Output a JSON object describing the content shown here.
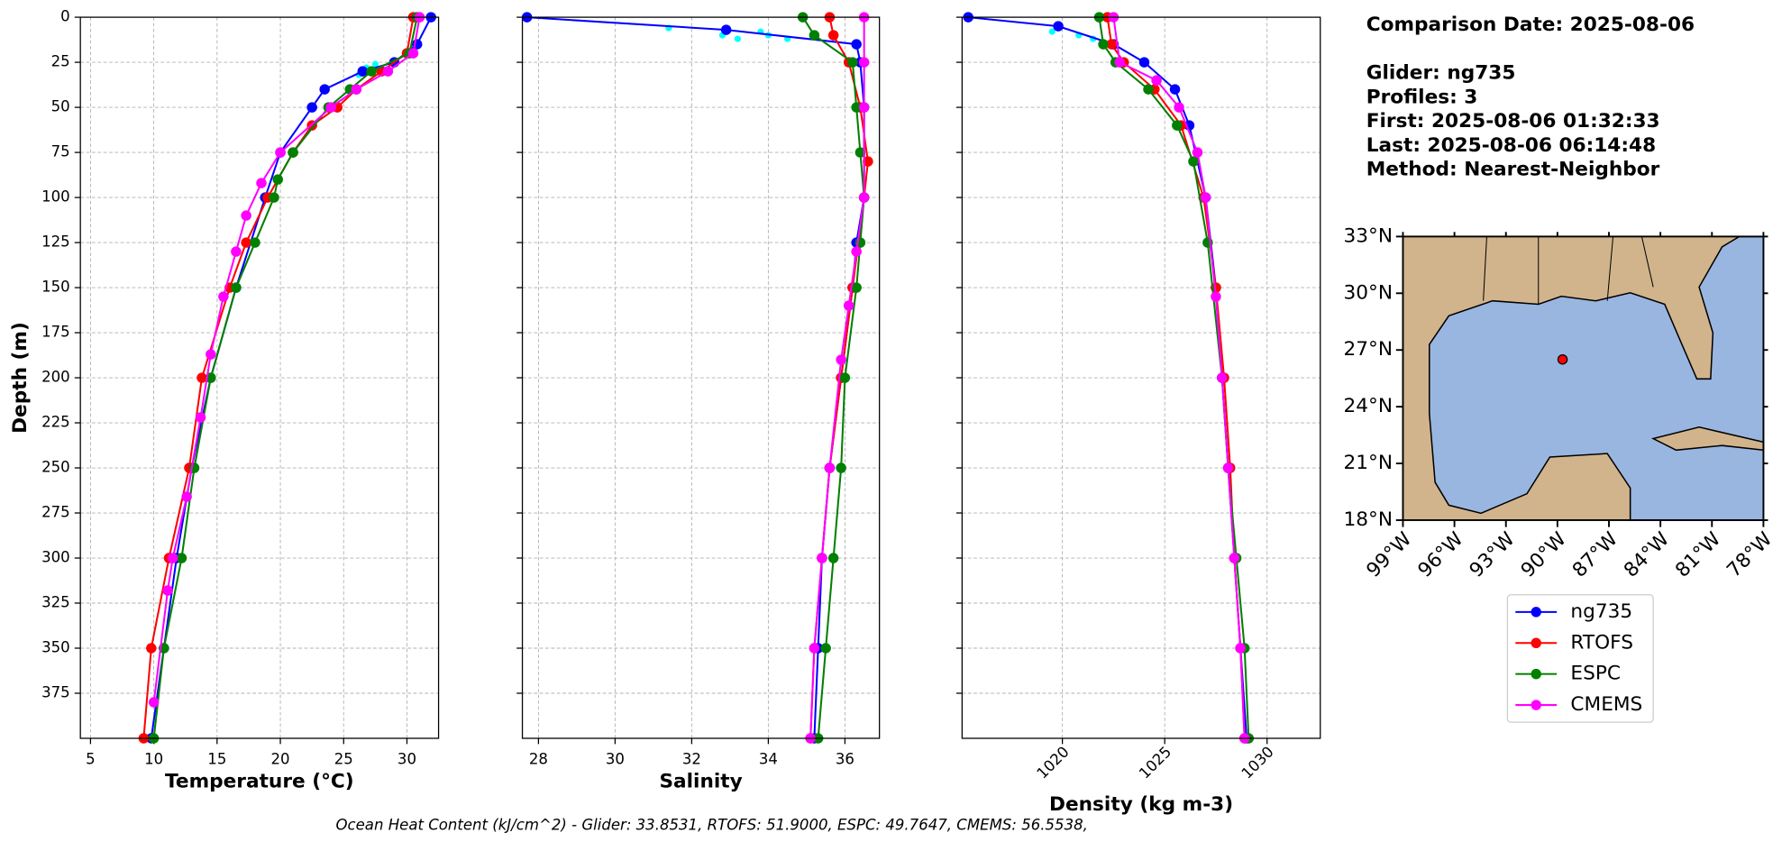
{
  "chart_data": [
    {
      "type": "line",
      "xlabel": "Temperature (°C)",
      "ylabel": "Depth (m)",
      "xlim": [
        4.2,
        32.5
      ],
      "xticks": [
        5,
        10,
        15,
        20,
        25,
        30
      ],
      "ylim": [
        400,
        0
      ],
      "yticks": [
        0,
        25,
        50,
        75,
        100,
        125,
        150,
        175,
        200,
        225,
        250,
        275,
        300,
        325,
        350,
        375
      ],
      "grid": true,
      "series": [
        {
          "color": "cyan",
          "depth": [
            26,
            28,
            32
          ],
          "values": [
            27.5,
            26.8,
            26.2
          ]
        },
        {
          "name": "ng735",
          "color": "blue",
          "depth": [
            0,
            15,
            25,
            30,
            40,
            50,
            75,
            100,
            150,
            200,
            250,
            300,
            350,
            400
          ],
          "values": [
            31.9,
            30.8,
            29,
            26.5,
            23.5,
            22.5,
            20,
            18.8,
            16.5,
            14.5,
            13,
            11.8,
            10.8,
            9.8
          ]
        },
        {
          "name": "RTOFS",
          "color": "red",
          "depth": [
            0,
            20,
            30,
            40,
            50,
            60,
            75,
            100,
            125,
            150,
            200,
            250,
            300,
            350,
            400
          ],
          "values": [
            30.5,
            30,
            28,
            26,
            24.5,
            22.5,
            21,
            19,
            17.3,
            16,
            13.8,
            12.8,
            11.2,
            9.8,
            9.2
          ]
        },
        {
          "name": "ESPC",
          "color": "green",
          "depth": [
            0,
            20,
            30,
            40,
            50,
            75,
            90,
            100,
            125,
            150,
            200,
            250,
            300,
            350,
            400
          ],
          "values": [
            30.8,
            30.2,
            27.2,
            25.5,
            23.8,
            21,
            19.8,
            19.5,
            18,
            16.5,
            14.5,
            13.2,
            12.2,
            10.8,
            10
          ]
        },
        {
          "name": "CMEMS",
          "color": "magenta",
          "depth": [
            0,
            20,
            30,
            40,
            50,
            75,
            92,
            110,
            130,
            155,
            187,
            222,
            266,
            300,
            318,
            380
          ],
          "values": [
            31,
            30.5,
            28.5,
            26,
            24,
            20,
            18.5,
            17.3,
            16.5,
            15.5,
            14.5,
            13.7,
            12.6,
            11.5,
            11.1,
            10
          ]
        }
      ]
    },
    {
      "type": "line",
      "xlabel": "Salinity",
      "xlim": [
        27.58,
        36.9
      ],
      "xticks": [
        28,
        30,
        32,
        34,
        36
      ],
      "ylim": [
        400,
        0
      ],
      "grid": true,
      "series": [
        {
          "color": "cyan",
          "depth": [
            6,
            8,
            10,
            12,
            10,
            12
          ],
          "values": [
            31.4,
            33.8,
            34.0,
            34.5,
            32.8,
            33.2
          ]
        },
        {
          "name": "ng735",
          "color": "blue",
          "depth": [
            0,
            7,
            15,
            25,
            50,
            100,
            125,
            150,
            200,
            250,
            300,
            350,
            400
          ],
          "values": [
            27.7,
            32.9,
            36.3,
            36.4,
            36.5,
            36.5,
            36.3,
            36.2,
            35.9,
            35.6,
            35.4,
            35.3,
            35.2
          ]
        },
        {
          "name": "RTOFS",
          "color": "red",
          "depth": [
            0,
            10,
            25,
            50,
            80,
            100,
            150,
            200,
            250,
            300,
            350,
            400
          ],
          "values": [
            35.6,
            35.7,
            36.1,
            36.4,
            36.6,
            36.5,
            36.2,
            35.9,
            35.6,
            35.4,
            35.2,
            35.1
          ]
        },
        {
          "name": "ESPC",
          "color": "green",
          "depth": [
            0,
            10,
            25,
            50,
            75,
            100,
            125,
            150,
            200,
            250,
            300,
            350,
            400
          ],
          "values": [
            34.9,
            35.2,
            36.2,
            36.3,
            36.4,
            36.5,
            36.4,
            36.3,
            36.0,
            35.9,
            35.7,
            35.5,
            35.3
          ]
        },
        {
          "name": "CMEMS",
          "color": "magenta",
          "depth": [
            0,
            25,
            50,
            100,
            130,
            160,
            190,
            250,
            300,
            350,
            400
          ],
          "values": [
            36.5,
            36.5,
            36.5,
            36.5,
            36.3,
            36.1,
            35.9,
            35.6,
            35.4,
            35.2,
            35.1
          ]
        }
      ]
    },
    {
      "type": "line",
      "xlabel": "Density (kg m-3)",
      "xlim": [
        1015.1,
        1032.6
      ],
      "xticks": [
        1020,
        1025,
        1030
      ],
      "ylim": [
        400,
        0
      ],
      "grid": true,
      "series": [
        {
          "color": "cyan",
          "depth": [
            8,
            10,
            12
          ],
          "values": [
            1019.5,
            1020.8,
            1021.5
          ]
        },
        {
          "name": "ng735",
          "color": "blue",
          "depth": [
            0,
            5,
            15,
            25,
            40,
            60,
            100,
            150,
            200,
            250,
            300,
            350,
            400
          ],
          "values": [
            1015.4,
            1019.8,
            1022.5,
            1024.0,
            1025.5,
            1026.2,
            1027.0,
            1027.5,
            1027.8,
            1028.1,
            1028.4,
            1028.7,
            1029.0
          ]
        },
        {
          "name": "RTOFS",
          "color": "red",
          "depth": [
            0,
            15,
            25,
            40,
            60,
            100,
            150,
            200,
            250,
            300,
            350,
            400
          ],
          "values": [
            1022.2,
            1022.4,
            1023.0,
            1024.5,
            1025.8,
            1026.9,
            1027.5,
            1027.9,
            1028.2,
            1028.4,
            1028.7,
            1028.9
          ]
        },
        {
          "name": "ESPC",
          "color": "green",
          "depth": [
            0,
            15,
            25,
            40,
            60,
            80,
            125,
            200,
            250,
            300,
            350,
            400
          ],
          "values": [
            1021.8,
            1022.0,
            1022.6,
            1024.2,
            1025.6,
            1026.4,
            1027.1,
            1027.8,
            1028.1,
            1028.5,
            1028.9,
            1029.1
          ]
        },
        {
          "name": "CMEMS",
          "color": "magenta",
          "depth": [
            0,
            25,
            35,
            50,
            75,
            100,
            155,
            200,
            250,
            300,
            350,
            400
          ],
          "values": [
            1022.5,
            1022.8,
            1024.6,
            1025.7,
            1026.6,
            1027.0,
            1027.5,
            1027.8,
            1028.1,
            1028.4,
            1028.7,
            1028.9
          ]
        }
      ]
    },
    {
      "type": "map",
      "xlim": [
        -99,
        -78
      ],
      "ylim": [
        18,
        33
      ],
      "xticks": [
        {
          "value": -99,
          "label": "99°W"
        },
        {
          "value": -96,
          "label": "96°W"
        },
        {
          "value": -93,
          "label": "93°W"
        },
        {
          "value": -90,
          "label": "90°W"
        },
        {
          "value": -87,
          "label": "87°W"
        },
        {
          "value": -84,
          "label": "84°W"
        },
        {
          "value": -81,
          "label": "81°W"
        },
        {
          "value": -78,
          "label": "78°W"
        }
      ],
      "yticks": [
        {
          "value": 18,
          "label": "18°N"
        },
        {
          "value": 21,
          "label": "21°N"
        },
        {
          "value": 24,
          "label": "24°N"
        },
        {
          "value": 27,
          "label": "27°N"
        },
        {
          "value": 30,
          "label": "30°N"
        },
        {
          "value": 33,
          "label": "33°N"
        }
      ],
      "points": {
        "color": "red",
        "x": [
          -89.7
        ],
        "y": [
          26.5
        ]
      }
    }
  ],
  "summary": [
    "Comparison Date: 2025-08-06",
    "Glider: ng735",
    "Profiles: 3",
    "First: 2025-08-06 01:32:33",
    "Last: 2025-08-06 06:14:48",
    "Method: Nearest-Neighbor"
  ],
  "footer": "Ocean Heat Content (kJ/cm^2) - Glider: 33.8531,  RTOFS: 51.9000,  ESPC: 49.7647,  CMEMS: 56.5538,"
}
